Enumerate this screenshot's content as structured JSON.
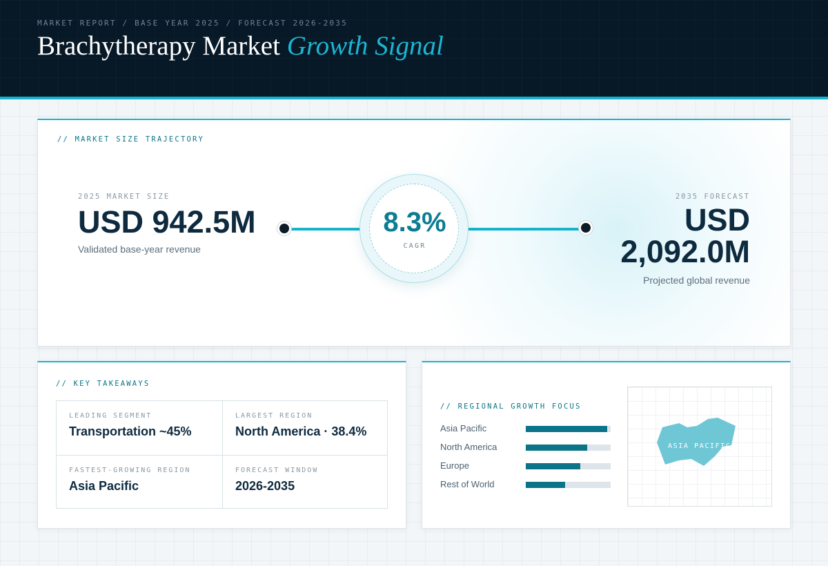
{
  "header": {
    "eyebrow": "MARKET REPORT / BASE YEAR 2025 / FORECAST 2026-2035",
    "title_main": "Brachytherapy Market",
    "title_accent": "Growth Signal"
  },
  "trajectory": {
    "section_label": "// MARKET SIZE TRAJECTORY",
    "base": {
      "label": "2025 MARKET SIZE",
      "value": "USD 942.5M",
      "sub": "Validated base-year revenue"
    },
    "cagr": {
      "value": "8.3%",
      "label": "CAGR"
    },
    "forecast": {
      "label": "2035 FORECAST",
      "value_line1": "USD",
      "value_line2": "2,092.0M",
      "sub": "Projected global revenue"
    }
  },
  "takeaways": {
    "section_label": "// KEY TAKEAWAYS",
    "items": [
      {
        "label": "LEADING SEGMENT",
        "value": "Transportation ~45%"
      },
      {
        "label": "LARGEST REGION",
        "value": "North America · 38.4%"
      },
      {
        "label": "FASTEST-GROWING REGION",
        "value": "Asia Pacific"
      },
      {
        "label": "FORECAST WINDOW",
        "value": "2026-2035"
      }
    ]
  },
  "regional": {
    "section_label": "// REGIONAL GROWTH FOCUS",
    "bars": [
      {
        "name": "Asia Pacific",
        "level": 0.96
      },
      {
        "name": "North America",
        "level": 0.72
      },
      {
        "name": "Europe",
        "level": 0.64
      },
      {
        "name": "Rest of World",
        "level": 0.46
      }
    ],
    "map_label": "ASIA PACIFIC",
    "colors": {
      "bar_fill": "#0b7488",
      "bar_track": "#dde5ea",
      "map_shape": "#6fc7d6"
    }
  },
  "colors": {
    "header_bg": "#071827",
    "accent": "#16b3cc",
    "text_dark": "#0d2a3f"
  }
}
